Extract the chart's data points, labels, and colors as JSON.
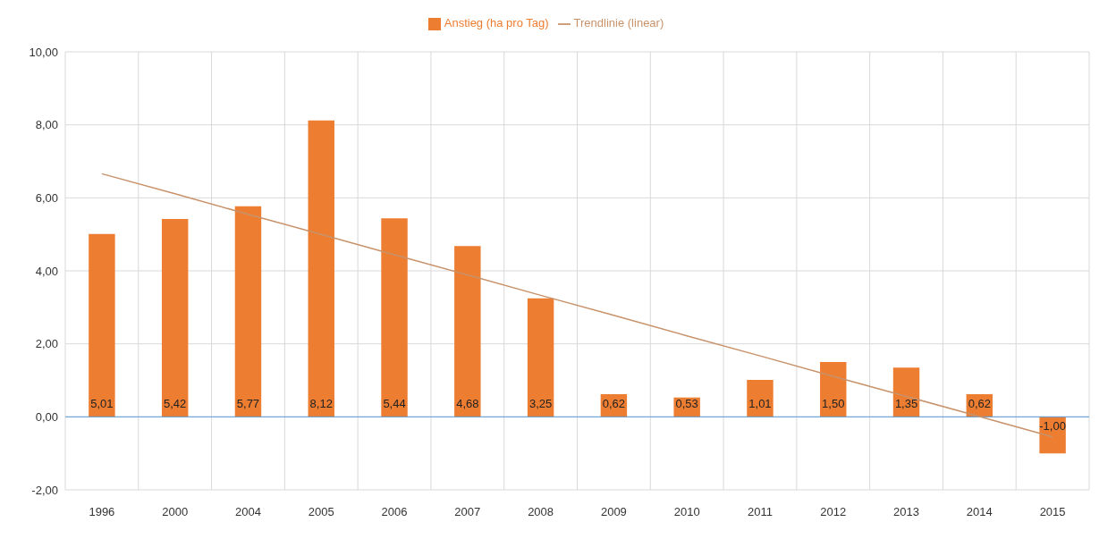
{
  "chart_data": {
    "type": "bar",
    "categories": [
      "1996",
      "2000",
      "2004",
      "2005",
      "2006",
      "2007",
      "2008",
      "2009",
      "2010",
      "2011",
      "2012",
      "2013",
      "2014",
      "2015"
    ],
    "series": [
      {
        "name": "Anstieg (ha pro Tag)",
        "color": "#ed7d31",
        "values": [
          5.01,
          5.42,
          5.77,
          8.12,
          5.44,
          4.68,
          3.25,
          0.62,
          0.53,
          1.01,
          1.5,
          1.35,
          0.62,
          -1.0
        ],
        "value_labels": [
          "5,01",
          "5,42",
          "5,77",
          "8,12",
          "5,44",
          "4,68",
          "3,25",
          "0,62",
          "0,53",
          "1,01",
          "1,50",
          "1,35",
          "0,62",
          "-1,00"
        ]
      },
      {
        "name": "Trendlinie (linear)",
        "type": "line",
        "color": "#c8926a",
        "values": [
          6.66,
          6.11,
          5.55,
          5.0,
          4.44,
          3.89,
          3.33,
          2.78,
          2.22,
          1.67,
          1.11,
          0.56,
          0.01,
          -0.55
        ]
      }
    ],
    "ylim": [
      -2,
      10
    ],
    "yticks": [
      {
        "value": -2,
        "label": "-2,00"
      },
      {
        "value": 0,
        "label": "0,00"
      },
      {
        "value": 2,
        "label": "2,00"
      },
      {
        "value": 4,
        "label": "4,00"
      },
      {
        "value": 6,
        "label": "6,00"
      },
      {
        "value": 8,
        "label": "8,00"
      },
      {
        "value": 10,
        "label": "10,00"
      }
    ],
    "ref_lines": [
      {
        "axis": "y",
        "value": 0,
        "color": "#5b9bd5"
      }
    ],
    "grid": true,
    "legend": "top",
    "marker": "none"
  }
}
